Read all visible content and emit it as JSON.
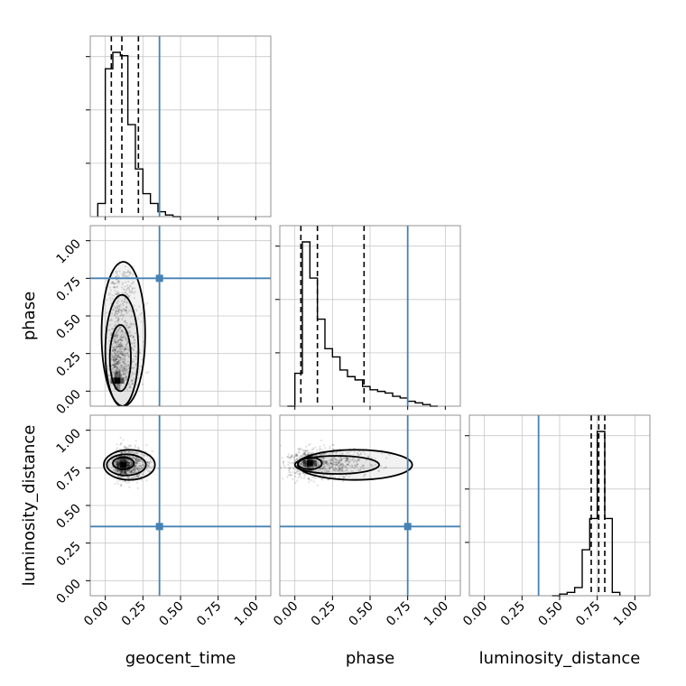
{
  "chart_data": {
    "type": "corner",
    "parameters": [
      "geocent_time",
      "phase",
      "luminosity_distance"
    ],
    "tick_values": [
      0.0,
      0.25,
      0.5,
      0.75,
      1.0
    ],
    "tick_labels": [
      "0.00",
      "0.25",
      "0.50",
      "0.75",
      "1.00"
    ],
    "axis_range": [
      -0.1,
      1.1
    ],
    "truth_color": "#4682b4",
    "truths": {
      "geocent_time": 0.36,
      "phase": 0.75,
      "luminosity_distance": 0.36
    },
    "histograms": [
      {
        "param": "geocent_time",
        "bin_edges": [
          -0.05,
          0.0,
          0.05,
          0.1,
          0.15,
          0.2,
          0.25,
          0.3,
          0.35,
          0.4,
          0.45,
          0.5
        ],
        "counts": [
          0.08,
          0.9,
          1.0,
          0.98,
          0.56,
          0.29,
          0.14,
          0.08,
          0.03,
          0.01,
          0.0
        ],
        "quantiles": [
          0.04,
          0.11,
          0.22
        ]
      },
      {
        "param": "phase",
        "bin_edges": [
          -0.05,
          0.0,
          0.05,
          0.1,
          0.15,
          0.2,
          0.25,
          0.3,
          0.35,
          0.4,
          0.45,
          0.5,
          0.55,
          0.6,
          0.65,
          0.7,
          0.75,
          0.8,
          0.85,
          0.9,
          0.95
        ],
        "counts": [
          0.0,
          0.2,
          1.0,
          0.78,
          0.53,
          0.35,
          0.3,
          0.22,
          0.18,
          0.16,
          0.12,
          0.1,
          0.09,
          0.08,
          0.06,
          0.05,
          0.03,
          0.02,
          0.01,
          0.0
        ],
        "quantiles": [
          0.04,
          0.15,
          0.46
        ]
      },
      {
        "param": "luminosity_distance",
        "bin_edges": [
          0.45,
          0.5,
          0.55,
          0.6,
          0.65,
          0.7,
          0.75,
          0.8,
          0.85,
          0.9
        ],
        "counts": [
          0.0,
          0.01,
          0.02,
          0.05,
          0.28,
          0.47,
          1.0,
          0.47,
          0.02
        ],
        "quantiles": [
          0.71,
          0.76,
          0.8
        ]
      }
    ],
    "scatter_panels": [
      {
        "x": "geocent_time",
        "y": "phase",
        "center": [
          0.08,
          0.07
        ],
        "spread": [
          0.07,
          0.22
        ],
        "contours": [
          {
            "cx": 0.1,
            "cy": 0.22,
            "rx": 0.07,
            "ry": 0.22
          },
          {
            "cx": 0.11,
            "cy": 0.27,
            "rx": 0.11,
            "ry": 0.37
          },
          {
            "cx": 0.12,
            "cy": 0.38,
            "rx": 0.145,
            "ry": 0.48
          }
        ]
      },
      {
        "x": "geocent_time",
        "y": "luminosity_distance",
        "center": [
          0.12,
          0.77
        ],
        "spread": [
          0.08,
          0.05
        ],
        "contours": [
          {
            "cx": 0.12,
            "cy": 0.78,
            "rx": 0.07,
            "ry": 0.04
          },
          {
            "cx": 0.14,
            "cy": 0.77,
            "rx": 0.13,
            "ry": 0.07
          },
          {
            "cx": 0.16,
            "cy": 0.77,
            "rx": 0.17,
            "ry": 0.1
          }
        ]
      },
      {
        "x": "phase",
        "y": "luminosity_distance",
        "center": [
          0.1,
          0.78
        ],
        "spread": [
          0.18,
          0.05
        ],
        "contours": [
          {
            "cx": 0.1,
            "cy": 0.78,
            "rx": 0.08,
            "ry": 0.04
          },
          {
            "cx": 0.28,
            "cy": 0.77,
            "rx": 0.28,
            "ry": 0.06
          },
          {
            "cx": 0.4,
            "cy": 0.77,
            "rx": 0.38,
            "ry": 0.1
          }
        ]
      }
    ]
  }
}
